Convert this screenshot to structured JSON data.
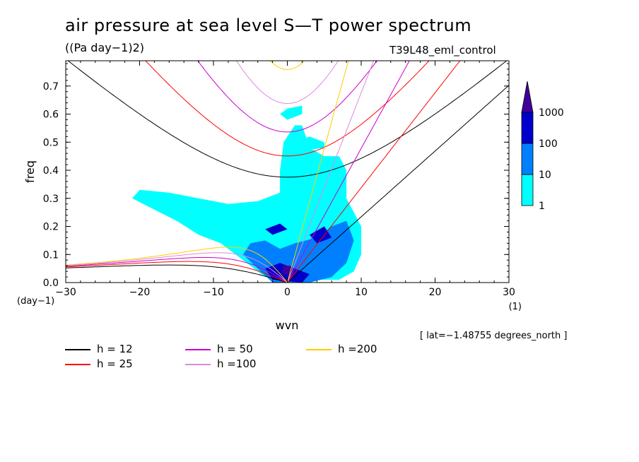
{
  "title": "air pressure at sea level S—T power spectrum",
  "units": "((Pa day−1)2)",
  "run_label": "T39L48_eml_control",
  "lat_note": "[ lat=−1.48755 degrees_north ]",
  "colors": {
    "fill_1": "#00ffff",
    "fill_10": "#0080ff",
    "fill_100": "#0000cc",
    "fill_1000": "#400099"
  },
  "chart_data": {
    "type": "heatmap",
    "title": "air pressure at sea level S—T power spectrum",
    "xlabel": "wvn",
    "ylabel": "freq",
    "x_unit_label": "(1)",
    "y_unit_label": "(day−1)",
    "xlim": [
      -30,
      30
    ],
    "ylim": [
      0,
      0.79
    ],
    "x_ticks": [
      -30,
      -20,
      -10,
      0,
      10,
      20,
      30
    ],
    "x_tick_labels": [
      "−30",
      "−20",
      "−10",
      "0",
      "10",
      "20",
      "30"
    ],
    "y_ticks": [
      0.0,
      0.1,
      0.2,
      0.3,
      0.4,
      0.5,
      0.6,
      0.7
    ],
    "y_tick_labels": [
      "0.0",
      "0.1",
      "0.2",
      "0.3",
      "0.4",
      "0.5",
      "0.6",
      "0.7"
    ],
    "colorbar": {
      "levels": [
        1,
        10,
        100,
        1000
      ],
      "labels": [
        "1",
        "10",
        "100",
        "1000"
      ],
      "colors": [
        "#00ffff",
        "#0080ff",
        "#0000cc",
        "#400099"
      ]
    },
    "contour_regions": [
      {
        "level": 1,
        "polygons": [
          [
            [
              -3,
              0.02
            ],
            [
              -6,
              0.08
            ],
            [
              -9,
              0.14
            ],
            [
              -12,
              0.17
            ],
            [
              -15,
              0.22
            ],
            [
              -18,
              0.26
            ],
            [
              -21,
              0.3
            ],
            [
              -20,
              0.33
            ],
            [
              -16,
              0.32
            ],
            [
              -12,
              0.3
            ],
            [
              -8,
              0.28
            ],
            [
              -4,
              0.29
            ],
            [
              -1,
              0.32
            ],
            [
              -1,
              0.4
            ],
            [
              -0.5,
              0.5
            ],
            [
              1,
              0.56
            ],
            [
              2,
              0.56
            ],
            [
              3,
              0.48
            ],
            [
              5,
              0.45
            ],
            [
              7,
              0.45
            ],
            [
              8,
              0.4
            ],
            [
              8,
              0.3
            ],
            [
              9,
              0.25
            ],
            [
              10,
              0.2
            ],
            [
              10,
              0.1
            ],
            [
              9,
              0.04
            ],
            [
              7,
              0.01
            ],
            [
              3,
              0.01
            ]
          ],
          [
            [
              -1,
              0.6
            ],
            [
              0,
              0.62
            ],
            [
              2,
              0.63
            ],
            [
              2,
              0.6
            ],
            [
              0,
              0.58
            ]
          ],
          [
            [
              1,
              0.5
            ],
            [
              3,
              0.52
            ],
            [
              5,
              0.5
            ],
            [
              5,
              0.48
            ],
            [
              2,
              0.47
            ]
          ]
        ]
      },
      {
        "level": 10,
        "polygons": [
          [
            [
              -2,
              0.0
            ],
            [
              -4,
              0.05
            ],
            [
              -6,
              0.1
            ],
            [
              -5,
              0.14
            ],
            [
              -3,
              0.15
            ],
            [
              -1,
              0.12
            ],
            [
              1,
              0.14
            ],
            [
              4,
              0.16
            ],
            [
              6,
              0.2
            ],
            [
              8,
              0.22
            ],
            [
              9,
              0.15
            ],
            [
              8,
              0.07
            ],
            [
              6,
              0.02
            ],
            [
              3,
              0.0
            ]
          ]
        ]
      },
      {
        "level": 100,
        "polygons": [
          [
            [
              -2,
              0.01
            ],
            [
              -3,
              0.05
            ],
            [
              -1,
              0.07
            ],
            [
              1,
              0.05
            ],
            [
              3,
              0.03
            ],
            [
              2,
              0.0
            ]
          ],
          [
            [
              3,
              0.17
            ],
            [
              5,
              0.2
            ],
            [
              6,
              0.16
            ],
            [
              4,
              0.14
            ]
          ],
          [
            [
              -3,
              0.19
            ],
            [
              -1,
              0.21
            ],
            [
              0,
              0.19
            ],
            [
              -2,
              0.17
            ]
          ]
        ]
      },
      {
        "level": 1000,
        "polygons": [
          [
            [
              -0.6,
              0.03
            ],
            [
              -0.6,
              0.06
            ],
            [
              0.5,
              0.06
            ],
            [
              0.5,
              0.03
            ]
          ]
        ]
      }
    ],
    "series": [
      {
        "name": "h = 12",
        "color": "#000000",
        "equivalent_depth_m": 12
      },
      {
        "name": "h = 25",
        "color": "#ff0000",
        "equivalent_depth_m": 25
      },
      {
        "name": "h = 50",
        "color": "#cc00cc",
        "equivalent_depth_m": 50
      },
      {
        "name": "h =100",
        "color": "#dd88dd",
        "equivalent_depth_m": 100
      },
      {
        "name": "h =200",
        "color": "#ffcc00",
        "equivalent_depth_m": 200
      }
    ],
    "legend_placement": "bottom"
  }
}
